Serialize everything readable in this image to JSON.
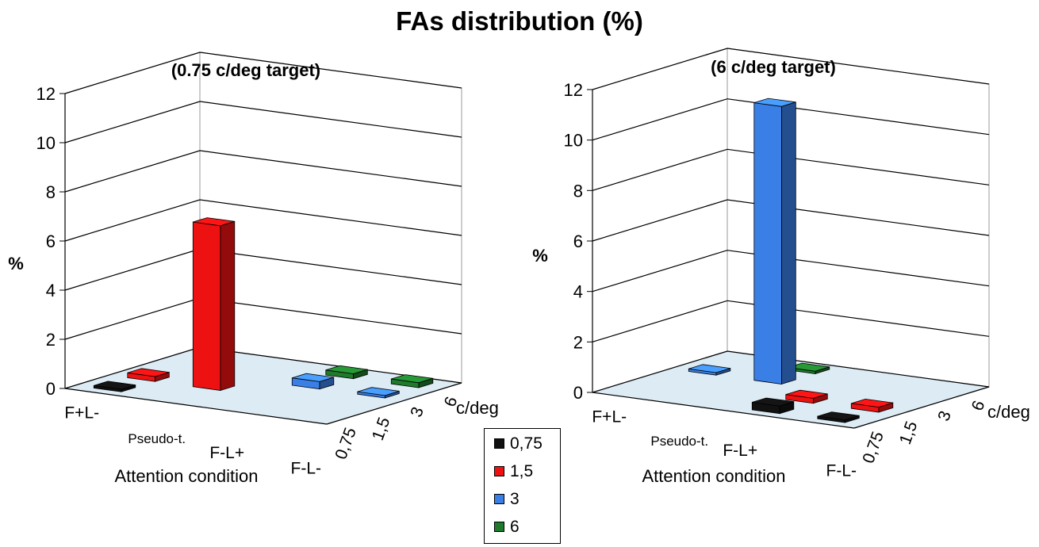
{
  "title": "FAs distribution (%)",
  "legend": {
    "items": [
      {
        "label": "0,75",
        "color": "#111111"
      },
      {
        "label": "1,5",
        "color": "#ee1111"
      },
      {
        "label": "3",
        "color": "#3a7fe6"
      },
      {
        "label": "6",
        "color": "#1f7a2c"
      }
    ]
  },
  "chart_data": [
    {
      "type": "bar",
      "subtitle": "(0.75 c/deg target)",
      "ylabel": "%",
      "xlabel": "Attention condition",
      "zlabel": "c/deg",
      "ylim": [
        0,
        12
      ],
      "yticks": [
        "0",
        "2",
        "4",
        "6",
        "8",
        "10",
        "12"
      ],
      "categories": [
        "F+L-",
        "Pseudo-t.",
        "F-L+",
        "F-L-"
      ],
      "depth_categories": [
        "0,75",
        "1,5",
        "3",
        "6"
      ],
      "series": [
        {
          "name": "0,75",
          "values": [
            0.1,
            0,
            0,
            0
          ]
        },
        {
          "name": "1,5",
          "values": [
            0.2,
            6.7,
            0,
            0
          ]
        },
        {
          "name": "3",
          "values": [
            0,
            0,
            0.3,
            0.1
          ]
        },
        {
          "name": "6",
          "values": [
            0,
            0,
            0.2,
            0.2
          ]
        }
      ]
    },
    {
      "type": "bar",
      "subtitle": "(6 c/deg target)",
      "ylabel": "%",
      "xlabel": "Attention condition",
      "zlabel": "c/deg",
      "ylim": [
        0,
        12
      ],
      "yticks": [
        "0",
        "2",
        "4",
        "6",
        "8",
        "10",
        "12"
      ],
      "categories": [
        "F+L-",
        "Pseudo-t.",
        "F-L+",
        "F-L-"
      ],
      "depth_categories": [
        "0,75",
        "1,5",
        "3",
        "6"
      ],
      "series": [
        {
          "name": "0,75",
          "values": [
            0,
            0,
            0.3,
            0.1
          ]
        },
        {
          "name": "1,5",
          "values": [
            0,
            0,
            0.2,
            0.2
          ]
        },
        {
          "name": "3",
          "values": [
            0.1,
            11,
            0,
            0
          ]
        },
        {
          "name": "6",
          "values": [
            0,
            0.1,
            0,
            0
          ]
        }
      ]
    }
  ]
}
